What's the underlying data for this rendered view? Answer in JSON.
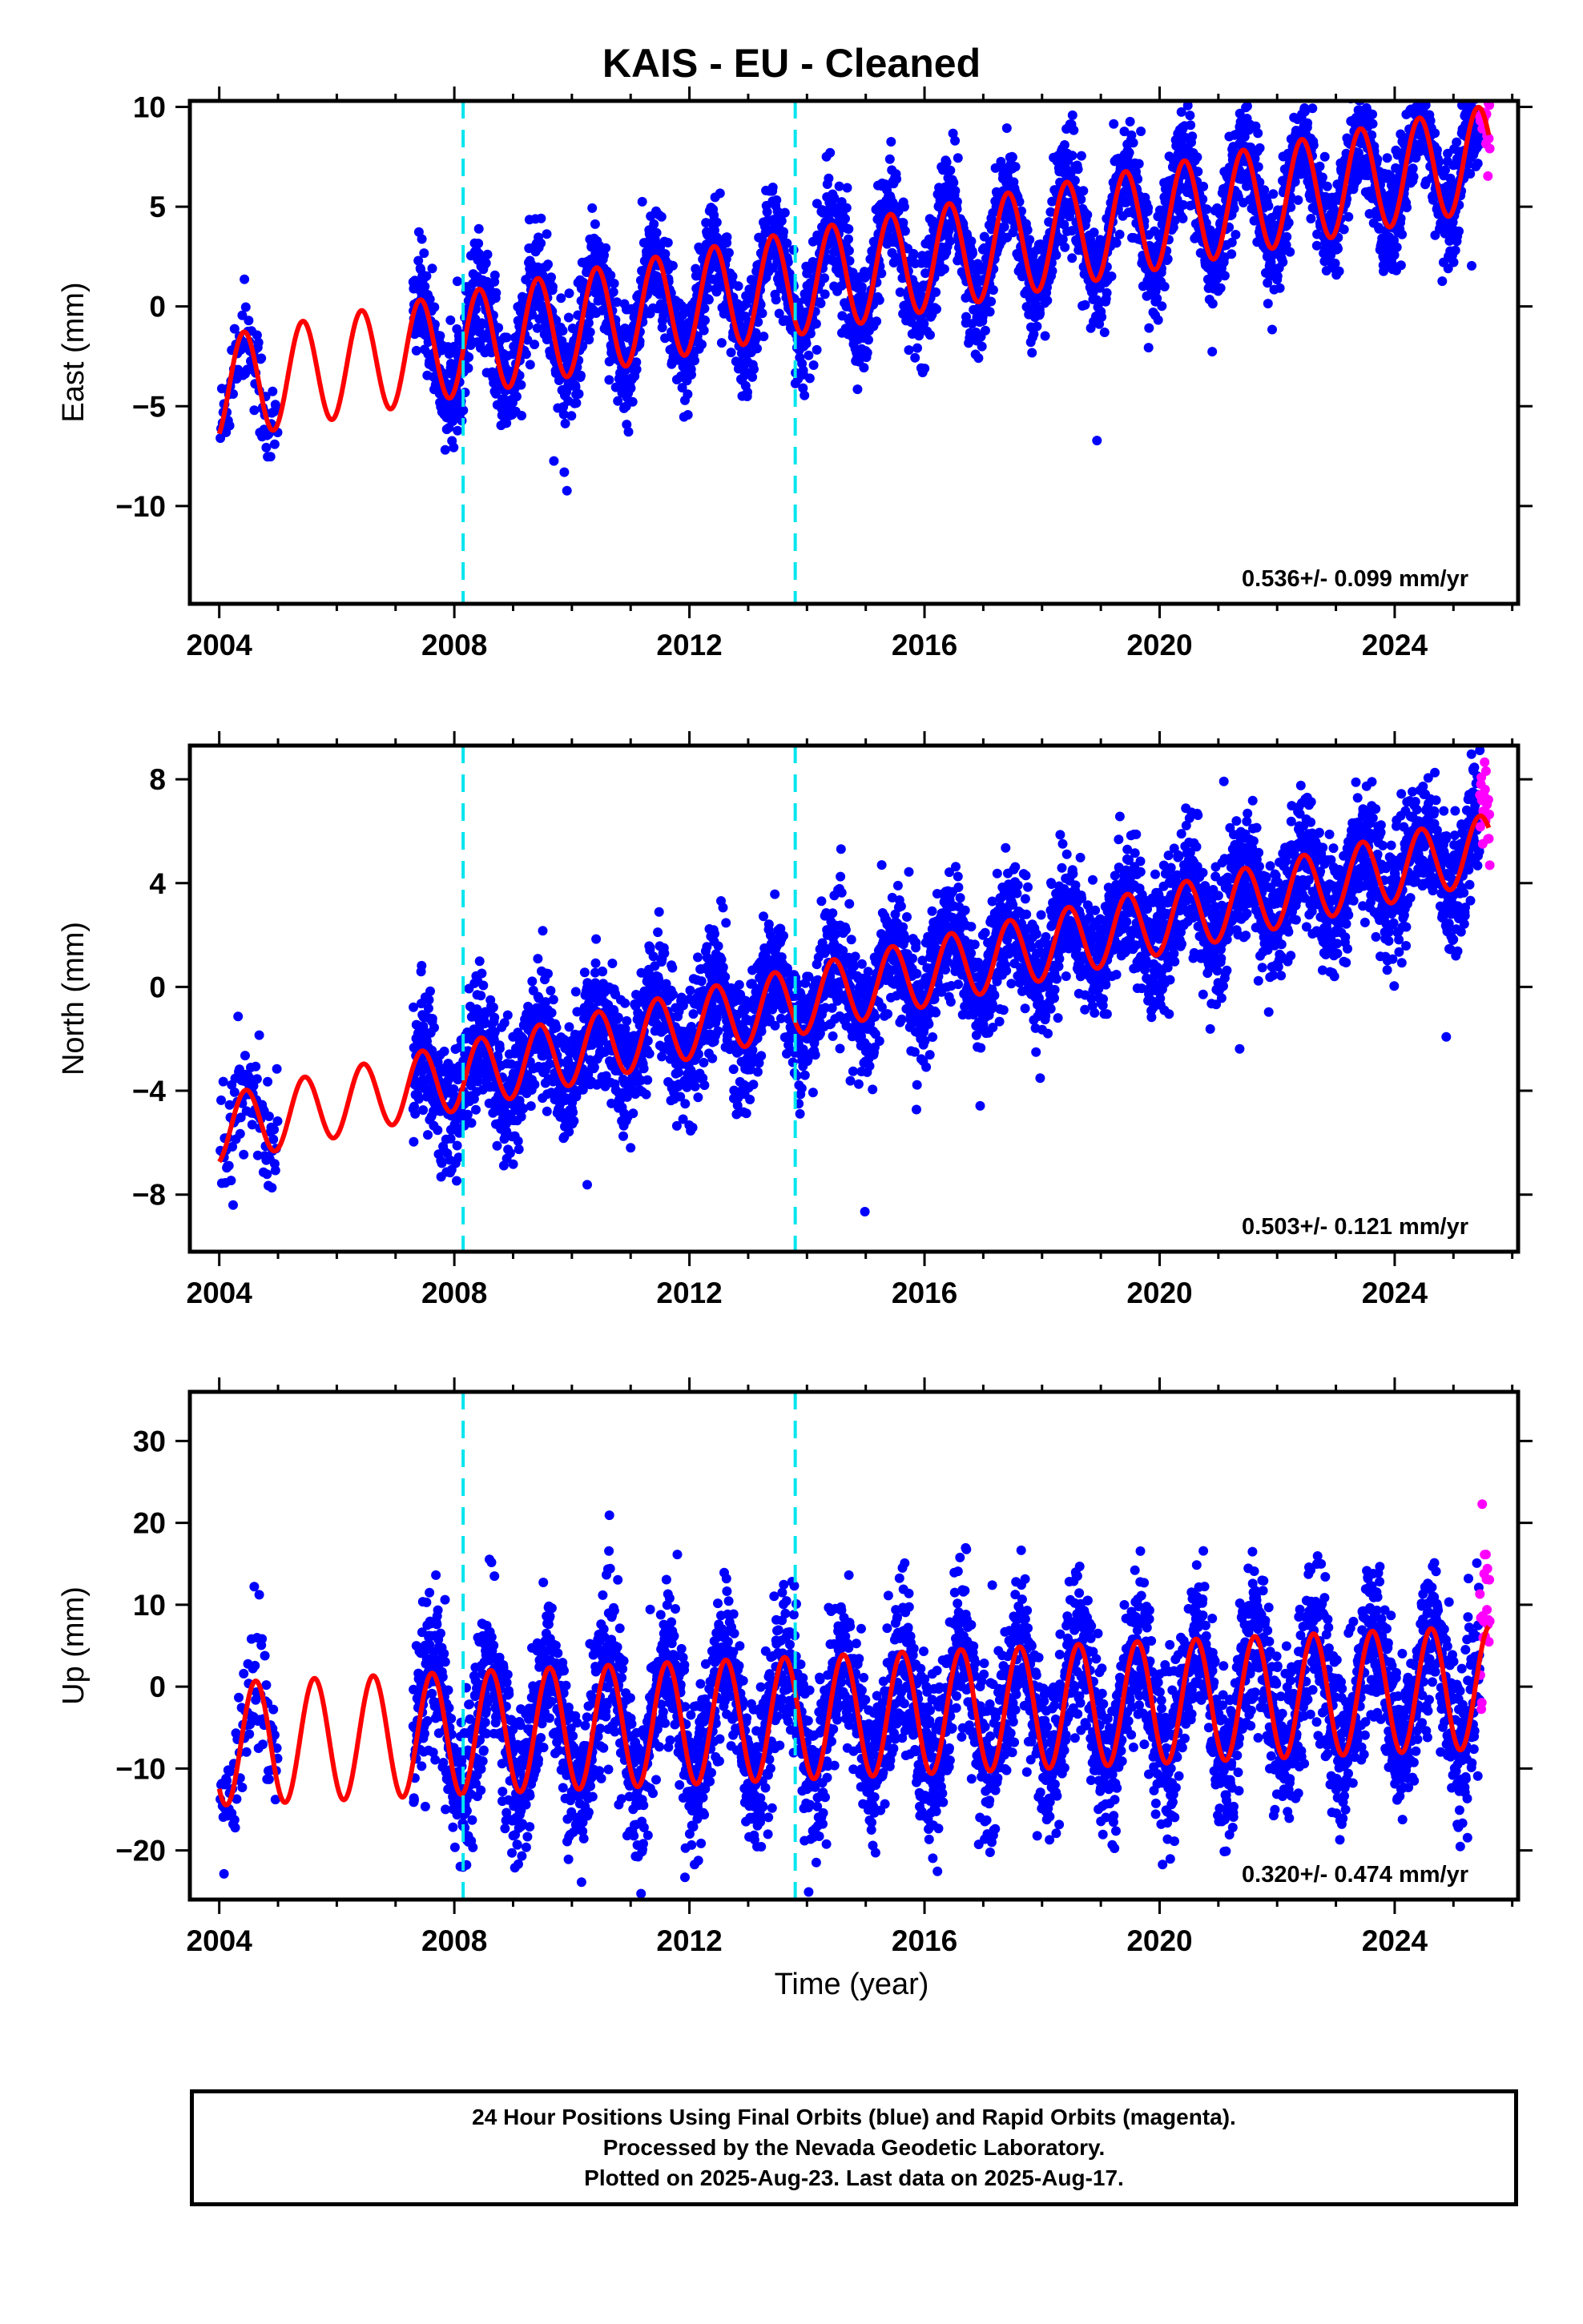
{
  "title": "KAIS  - EU - Cleaned",
  "xlabel": "Time (year)",
  "footer": {
    "line1": "24 Hour Positions Using Final Orbits (blue) and Rapid Orbits (magenta).",
    "line2": "Processed by the Nevada Geodetic Laboratory.",
    "line3": "Plotted on 2025-Aug-23. Last data on 2025-Aug-17."
  },
  "colors": {
    "final_orbits": "#0000ff",
    "rapid_orbits": "#ff00ff",
    "model": "#ff0000",
    "steps": "#00e5ee"
  },
  "chart_data": [
    {
      "type": "scatter",
      "ylabel": "East (mm)",
      "rate_label": "0.536+/- 0.099 mm/yr",
      "xlim": [
        2003.5,
        2026.1
      ],
      "ylim": [
        -14.9,
        10.3
      ],
      "xticks": [
        2004,
        2008,
        2012,
        2016,
        2020,
        2024
      ],
      "yticks": [
        -10,
        -5,
        0,
        5,
        10
      ],
      "step_epochs": [
        2008.15,
        2013.8
      ],
      "model": {
        "offset_at_2004": -4.1,
        "rate": 0.536,
        "annual_amplitude": 2.6,
        "annual_peak_year_fraction": 0.42,
        "data_start": 2007.3,
        "data_end": 2025.6
      },
      "series": [
        {
          "name": "Final Orbits",
          "color": "#0000ff",
          "scatter_sd": 1.3
        },
        {
          "name": "Rapid Orbits",
          "color": "#ff00ff",
          "x_start": 2025.45,
          "x_end": 2025.62
        }
      ]
    },
    {
      "type": "scatter",
      "ylabel": "North (mm)",
      "rate_label": "0.503+/- 0.121 mm/yr",
      "xlim": [
        2003.5,
        2026.1
      ],
      "ylim": [
        -10.2,
        9.3
      ],
      "xticks": [
        2004,
        2008,
        2012,
        2016,
        2020,
        2024
      ],
      "yticks": [
        -8,
        -4,
        0,
        4,
        8
      ],
      "step_epochs": [
        2008.15,
        2013.8
      ],
      "model": {
        "offset_at_2004": -5.5,
        "rate": 0.503,
        "annual_amplitude": 1.3,
        "annual_peak_year_fraction": 0.45,
        "data_start": 2007.3,
        "data_end": 2025.6
      },
      "series": [
        {
          "name": "Final Orbits",
          "color": "#0000ff",
          "scatter_sd": 1.2
        },
        {
          "name": "Rapid Orbits",
          "color": "#ff00ff",
          "x_start": 2025.45,
          "x_end": 2025.62
        }
      ]
    },
    {
      "type": "scatter",
      "ylabel": "Up (mm)",
      "rate_label": "0.320+/- 0.474 mm/yr",
      "xlim": [
        2003.5,
        2026.1
      ],
      "ylim": [
        -26,
        36
      ],
      "xticks": [
        2004,
        2008,
        2012,
        2016,
        2020,
        2024
      ],
      "yticks": [
        -20,
        -10,
        0,
        10,
        20,
        30
      ],
      "step_epochs": [
        2008.15,
        2013.8
      ],
      "model": {
        "offset_at_2004": -7.0,
        "rate": 0.32,
        "annual_amplitude": 7.5,
        "annual_peak_year_fraction": 0.62,
        "data_start": 2007.3,
        "data_end": 2025.6
      },
      "series": [
        {
          "name": "Final Orbits",
          "color": "#0000ff",
          "scatter_sd": 4.8
        },
        {
          "name": "Rapid Orbits",
          "color": "#ff00ff",
          "x_start": 2025.45,
          "x_end": 2025.62
        }
      ]
    }
  ]
}
